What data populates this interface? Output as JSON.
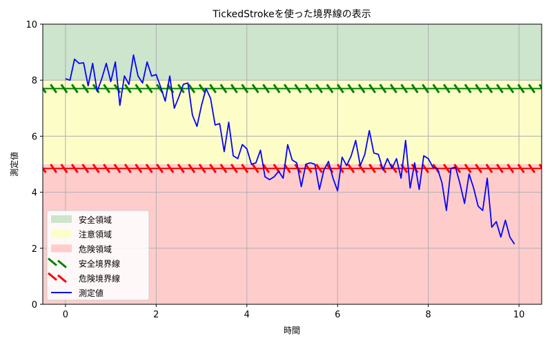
{
  "chart_data": {
    "type": "line",
    "title": "TickedStrokeを使った境界線の表示",
    "xlabel": "時間",
    "ylabel": "測定値",
    "xlim": [
      -0.5,
      10.5
    ],
    "ylim": [
      0,
      10
    ],
    "xticks": [
      0,
      2,
      4,
      6,
      8,
      10
    ],
    "yticks": [
      0,
      2,
      4,
      6,
      8,
      10
    ],
    "grid": true,
    "legend_position": "lower-left",
    "zones": [
      {
        "name": "安全領域",
        "from": 8,
        "to": 10,
        "color": "#cde4cd"
      },
      {
        "name": "注意領域",
        "from": 5,
        "to": 8,
        "color": "#fdfdc8"
      },
      {
        "name": "危険領域",
        "from": 0,
        "to": 5,
        "color": "#ffcccc"
      }
    ],
    "thresholds": [
      {
        "name": "安全境界線",
        "y": 7.7,
        "color": "#008000"
      },
      {
        "name": "危険境界線",
        "y": 4.85,
        "color": "#ff0000"
      }
    ],
    "series": [
      {
        "name": "測定値",
        "color": "#0000ff",
        "x": [
          0.0,
          0.1,
          0.2,
          0.3,
          0.4,
          0.5,
          0.6,
          0.7,
          0.8,
          0.9,
          1.0,
          1.1,
          1.2,
          1.3,
          1.4,
          1.5,
          1.6,
          1.7,
          1.8,
          1.9,
          2.0,
          2.1,
          2.2,
          2.3,
          2.4,
          2.5,
          2.6,
          2.7,
          2.8,
          2.9,
          3.0,
          3.1,
          3.2,
          3.3,
          3.4,
          3.5,
          3.6,
          3.7,
          3.8,
          3.9,
          4.0,
          4.1,
          4.2,
          4.3,
          4.4,
          4.5,
          4.6,
          4.7,
          4.8,
          4.9,
          5.0,
          5.1,
          5.2,
          5.3,
          5.4,
          5.5,
          5.6,
          5.7,
          5.8,
          5.9,
          6.0,
          6.1,
          6.2,
          6.3,
          6.4,
          6.5,
          6.6,
          6.7,
          6.8,
          6.9,
          7.0,
          7.1,
          7.2,
          7.3,
          7.4,
          7.5,
          7.6,
          7.7,
          7.8,
          7.9,
          8.0,
          8.1,
          8.2,
          8.3,
          8.4,
          8.5,
          8.6,
          8.7,
          8.8,
          8.9,
          9.0,
          9.1,
          9.2,
          9.3,
          9.4,
          9.5,
          9.6,
          9.7,
          9.8,
          9.9,
          10.0
        ],
        "y": [
          8.05,
          8.0,
          8.75,
          8.6,
          8.62,
          7.8,
          8.6,
          7.6,
          8.05,
          8.6,
          7.95,
          8.65,
          7.1,
          8.15,
          7.85,
          8.9,
          8.15,
          7.9,
          8.65,
          8.15,
          8.2,
          7.75,
          7.25,
          8.15,
          7.0,
          7.4,
          7.85,
          7.9,
          6.75,
          6.35,
          7.1,
          7.7,
          7.35,
          6.4,
          6.45,
          5.45,
          6.5,
          5.3,
          5.2,
          5.7,
          5.55,
          5.0,
          5.05,
          5.5,
          4.55,
          4.45,
          4.55,
          4.75,
          4.5,
          5.7,
          5.15,
          5.05,
          4.2,
          5.0,
          5.05,
          5.0,
          4.1,
          4.8,
          5.1,
          4.5,
          4.05,
          5.25,
          4.95,
          5.3,
          5.85,
          4.95,
          5.35,
          6.2,
          5.4,
          5.35,
          4.8,
          5.2,
          4.85,
          5.2,
          4.5,
          5.85,
          4.15,
          5.05,
          4.1,
          5.3,
          5.2,
          4.9,
          4.85,
          4.35,
          3.35,
          4.85,
          4.9,
          4.3,
          3.6,
          4.65,
          4.15,
          3.5,
          3.35,
          4.5,
          2.75,
          2.95,
          2.4,
          3.0,
          2.4,
          2.15,
          null
        ]
      }
    ]
  }
}
